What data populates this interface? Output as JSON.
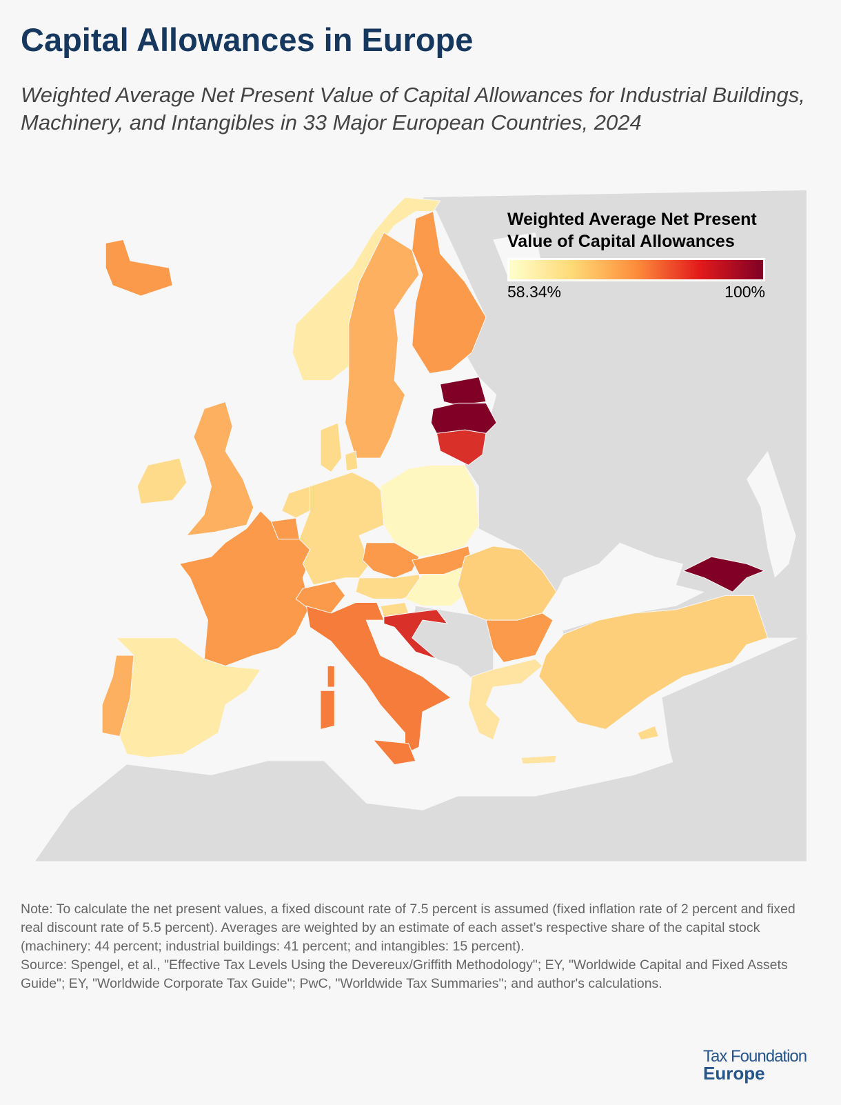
{
  "header": {
    "title": "Capital Allowances in Europe",
    "subtitle": "Weighted Average Net Present Value of Capital Allowances for Industrial Buildings, Machinery, and Intangibles in 33 Major European Countries, 2024"
  },
  "legend": {
    "title": "Weighted Average Net Present Value of Capital Allowances",
    "min_label": "58.34%",
    "max_label": "100%",
    "scale_colors": [
      "#ffffcc",
      "#fed976",
      "#fd8d3c",
      "#e31a1c",
      "#800026"
    ]
  },
  "map": {
    "land_color": "#dcdcdc",
    "sea_color": "#f7f7f7",
    "country_fills": {
      "IS": "#fc9a4c",
      "NO": "#ffeaa8",
      "SE": "#fdb060",
      "FI": "#fc9a4c",
      "EE": "#800026",
      "LV": "#800026",
      "LT": "#d9302a",
      "DK": "#fedb8a",
      "GB": "#fdb060",
      "IE": "#fedb8a",
      "NL": "#fedb8a",
      "BE": "#fc9a4c",
      "FR": "#fc9a4c",
      "DE": "#fedb8a",
      "PL": "#fff6c0",
      "CZ": "#fc9a4c",
      "SK": "#fc9a4c",
      "AT": "#fedb8a",
      "HU": "#fff6c0",
      "CH": "#fc9a4c",
      "IT": "#f57c3a",
      "SI": "#fedb8a",
      "HR": "#d9302a",
      "RO": "#fecf7a",
      "BG": "#fc9a4c",
      "GR": "#ffe3a0",
      "TR": "#fecf7a",
      "CY": "#fedb8a",
      "GE": "#800026",
      "PT": "#fdb060",
      "ES": "#ffeaa8"
    }
  },
  "footer": {
    "note": "Note: To calculate the net present values, a fixed discount rate of 7.5 percent is assumed (fixed inflation rate of 2 percent and fixed real discount rate of 5.5 percent). Averages are weighted by an estimate of each asset’s respective share of the capital stock (machinery: 44 percent; industrial buildings: 41 percent; and intangibles: 15 percent).",
    "source": "Source: Spengel, et al., \"Effective Tax Levels Using the Devereux/Griffith Methodology\"; EY, \"Worldwide Capital and Fixed Assets Guide\"; EY, \"Worldwide Corporate Tax Guide\"; PwC, \"Worldwide Tax Summaries\"; and author's calculations.",
    "logo_line1": "Tax Foundation",
    "logo_line2": "Europe"
  }
}
